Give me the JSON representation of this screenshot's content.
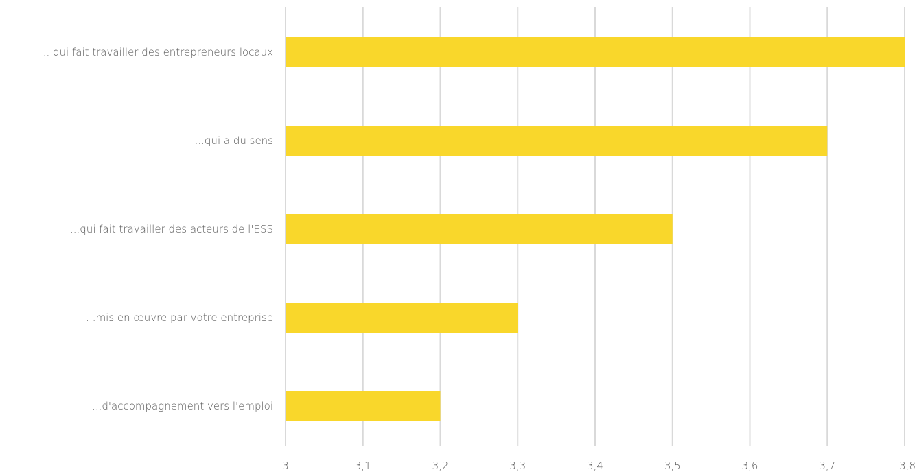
{
  "chart_data": {
    "type": "bar",
    "orientation": "horizontal",
    "categories": [
      "...qui fait travailler des entrepreneurs locaux",
      "...qui a du sens",
      "...qui fait travailler des acteurs de l'ESS",
      "...mis en œuvre par votre entreprise",
      "...d'accompagnement vers l'emploi"
    ],
    "values": [
      3.8,
      3.7,
      3.5,
      3.3,
      3.2
    ],
    "xlim": [
      3,
      3.8
    ],
    "x_ticks": [
      "3",
      "3,1",
      "3,2",
      "3,3",
      "3,4",
      "3,5",
      "3,6",
      "3,7",
      "3,8"
    ],
    "grid": "vertical",
    "legend": "none",
    "colors": {
      "bar": "#F9D72B",
      "grid": "#D9D9D9",
      "text": "#595959"
    }
  }
}
